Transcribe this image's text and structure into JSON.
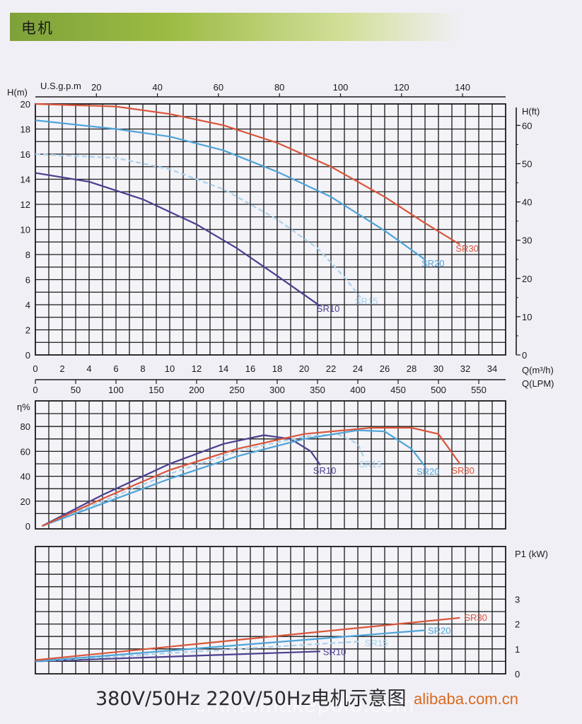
{
  "header": {
    "title": "电机"
  },
  "footer": {
    "caption": "380V/50Hz  220V/50Hz电机示意图"
  },
  "watermark": {
    "site": "china.makepolo.com",
    "domain": "alibaba.com.cn"
  },
  "colors": {
    "SR10": "#4b3f8e",
    "SR15": "#a9d2ea",
    "SR20": "#4ea4d8",
    "SR30": "#d9553a",
    "grid": "#1a1a1a"
  },
  "chart_data": [
    {
      "type": "line",
      "xlabel": "Q(m³/h)",
      "xlabel_secondary": "Q(LPM)",
      "xlabel_top": "U.S.g.p.m",
      "ylabel": "H(m)",
      "ylabel_right": "H(ft)",
      "xlim": [
        0,
        35
      ],
      "ylim": [
        0,
        20
      ],
      "x_ticks": [
        "0",
        "2",
        "4",
        "6",
        "8",
        "10",
        "12",
        "14",
        "16",
        "18",
        "20",
        "22",
        "24",
        "26",
        "28",
        "30",
        "32",
        "34"
      ],
      "y_ticks": [
        "0",
        "2",
        "4",
        "6",
        "8",
        "10",
        "12",
        "14",
        "16",
        "18",
        "20"
      ],
      "lpm_ticks": [
        "0",
        "50",
        "100",
        "150",
        "200",
        "250",
        "300",
        "350",
        "400",
        "450",
        "500",
        "550"
      ],
      "gpm_ticks": [
        "20",
        "40",
        "60",
        "80",
        "100",
        "120",
        "140"
      ],
      "ft_ticks": [
        "0",
        "10",
        "20",
        "30",
        "40",
        "50",
        "60"
      ],
      "series": [
        {
          "name": "SR10",
          "x": [
            0,
            4,
            8,
            12,
            15,
            18,
            20,
            21.2
          ],
          "y": [
            14.5,
            13.8,
            12.4,
            10.4,
            8.5,
            6.3,
            4.8,
            3.9
          ]
        },
        {
          "name": "SR15",
          "x": [
            0,
            6,
            10,
            14,
            18,
            21,
            23,
            24.2
          ],
          "y": [
            16,
            15.7,
            14.8,
            13.2,
            10.8,
            8.5,
            6.2,
            4.6
          ]
        },
        {
          "name": "SR20",
          "x": [
            0,
            6,
            10,
            14,
            18,
            22,
            26,
            29
          ],
          "y": [
            18.7,
            18,
            17.4,
            16.3,
            14.6,
            12.6,
            9.9,
            7.6
          ]
        },
        {
          "name": "SR30",
          "x": [
            0,
            6,
            10,
            14,
            18,
            22,
            26,
            29,
            31.6
          ],
          "y": [
            20,
            19.8,
            19.2,
            18.3,
            16.9,
            15,
            12.6,
            10.5,
            8.8
          ]
        }
      ]
    },
    {
      "type": "line",
      "ylabel": "η%",
      "xlim": [
        0,
        35
      ],
      "ylim": [
        0,
        100
      ],
      "y_ticks": [
        "0",
        "20",
        "40",
        "60",
        "80"
      ],
      "series": [
        {
          "name": "SR10",
          "x": [
            0.5,
            5,
            10,
            14,
            17,
            19,
            20.5,
            21.2
          ],
          "y": [
            0,
            25,
            50,
            66,
            73,
            70,
            60,
            49
          ]
        },
        {
          "name": "SR15",
          "x": [
            0.5,
            5,
            10,
            15,
            20,
            22.5,
            24,
            24.5
          ],
          "y": [
            0,
            20,
            42,
            60,
            72,
            74,
            66,
            54
          ]
        },
        {
          "name": "SR20",
          "x": [
            0.5,
            5,
            10,
            15,
            20,
            24,
            26,
            28,
            29
          ],
          "y": [
            0,
            18,
            38,
            56,
            70,
            77,
            76,
            62,
            48
          ]
        },
        {
          "name": "SR30",
          "x": [
            0.5,
            5,
            10,
            15,
            20,
            25,
            28,
            30,
            31.6
          ],
          "y": [
            0,
            22,
            45,
            62,
            74,
            79,
            79,
            74,
            50
          ]
        }
      ]
    },
    {
      "type": "line",
      "ylabel": "P1 (kW)",
      "xlim": [
        0,
        35
      ],
      "ylim": [
        0,
        5
      ],
      "y_ticks": [
        "0",
        "1",
        "2",
        "3"
      ],
      "series": [
        {
          "name": "SR10",
          "x": [
            0,
            21.2
          ],
          "y": [
            0.5,
            0.9
          ]
        },
        {
          "name": "SR15",
          "x": [
            0,
            24.2
          ],
          "y": [
            0.5,
            1.3
          ]
        },
        {
          "name": "SR20",
          "x": [
            0,
            29
          ],
          "y": [
            0.5,
            1.75
          ]
        },
        {
          "name": "SR30",
          "x": [
            0,
            31.6
          ],
          "y": [
            0.55,
            2.25
          ]
        }
      ]
    }
  ]
}
